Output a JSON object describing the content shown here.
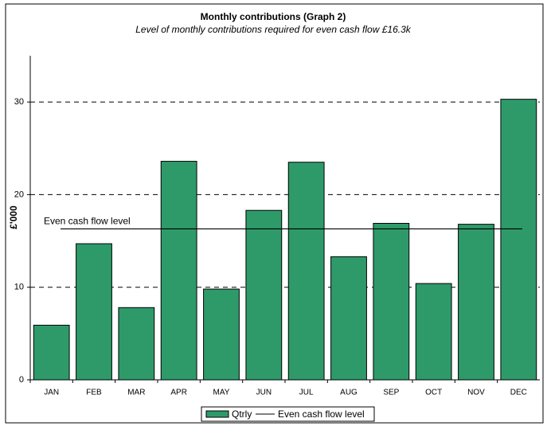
{
  "chart_data": {
    "type": "bar",
    "title": "Monthly contributions (Graph 2)",
    "subtitle": "Level of monthly contributions required for even cash flow £16.3k",
    "y_label": "£'000",
    "categories": [
      "JAN",
      "FEB",
      "MAR",
      "APR",
      "MAY",
      "JUN",
      "JUL",
      "AUG",
      "SEP",
      "OCT",
      "NOV",
      "DEC"
    ],
    "series": [
      {
        "name": "Qtrly",
        "color": "#2e9a6a",
        "values": [
          5.9,
          14.7,
          7.8,
          23.6,
          9.8,
          18.3,
          23.5,
          13.3,
          16.9,
          10.4,
          16.8,
          30.3
        ]
      }
    ],
    "reference_line": {
      "name": "Even cash flow level",
      "value": 16.3,
      "color": "#000000"
    },
    "ylim": [
      0,
      35
    ],
    "yticks": [
      0,
      10,
      20,
      30
    ],
    "grid": true,
    "legend": "bottom"
  }
}
